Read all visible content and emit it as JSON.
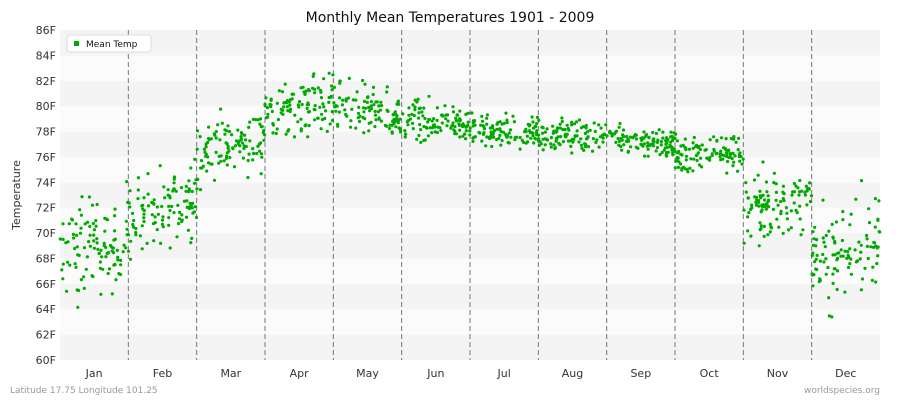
{
  "chart_data": {
    "type": "scatter",
    "title": "Monthly Mean Temperatures 1901 - 2009",
    "ylabel": "Temperature",
    "xlabel": "",
    "ylim": [
      60,
      86
    ],
    "y_ticks": [
      "60F",
      "62F",
      "64F",
      "66F",
      "68F",
      "70F",
      "72F",
      "74F",
      "76F",
      "78F",
      "80F",
      "82F",
      "84F",
      "86F"
    ],
    "months": [
      "Jan",
      "Feb",
      "Mar",
      "Apr",
      "May",
      "Jun",
      "Jul",
      "Aug",
      "Sep",
      "Oct",
      "Nov",
      "Dec"
    ],
    "legend": {
      "label": "Mean Temp",
      "position": "top-left"
    },
    "series_color": "#00aa00",
    "grid": "alternating horizontal bands, dashed month separators",
    "series": [
      {
        "name": "Mean Temp",
        "points_per_month": 109,
        "monthly_trend": [
          {
            "month": "Jan",
            "start": 68.0,
            "end": 69.8,
            "spread": 1.9
          },
          {
            "month": "Feb",
            "start": 71.0,
            "end": 72.8,
            "spread": 1.5
          },
          {
            "month": "Mar",
            "start": 76.0,
            "end": 77.8,
            "spread": 1.2
          },
          {
            "month": "Apr",
            "start": 79.5,
            "end": 80.5,
            "spread": 1.2
          },
          {
            "month": "May",
            "start": 80.0,
            "end": 79.0,
            "spread": 1.0
          },
          {
            "month": "Jun",
            "start": 78.8,
            "end": 78.8,
            "spread": 0.8
          },
          {
            "month": "Jul",
            "start": 78.0,
            "end": 78.0,
            "spread": 0.6
          },
          {
            "month": "Aug",
            "start": 77.8,
            "end": 77.6,
            "spread": 0.6
          },
          {
            "month": "Sep",
            "start": 77.6,
            "end": 77.0,
            "spread": 0.6
          },
          {
            "month": "Oct",
            "start": 76.0,
            "end": 76.5,
            "spread": 0.8
          },
          {
            "month": "Nov",
            "start": 72.0,
            "end": 72.5,
            "spread": 1.2
          },
          {
            "month": "Dec",
            "start": 67.5,
            "end": 69.5,
            "spread": 1.9
          }
        ]
      }
    ]
  },
  "footer": {
    "left": "Latitude 17.75 Longitude 101.25",
    "right": "worldspecies.org"
  }
}
